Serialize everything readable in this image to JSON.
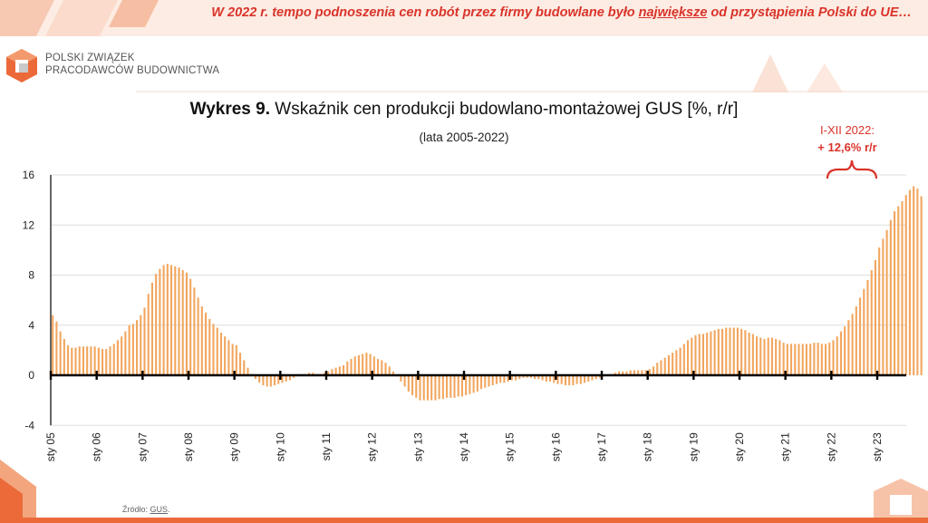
{
  "banner": {
    "text_before": "W 2022 r. tempo podnoszenia cen robót przez firmy budowlane było ",
    "text_underlined": "największe",
    "text_after": " od przystąpienia Polski do UE…"
  },
  "org": {
    "line1": "POLSKI ZWIĄZEK",
    "line2": "PRACODAWCÓW BUDOWNICTWA"
  },
  "colors": {
    "accent": "#ec6a3a",
    "bar": "#f2a65e",
    "red": "#d9342b"
  },
  "chart_data": {
    "type": "bar",
    "title_bold": "Wykres 9.",
    "title_rest": " Wskaźnik cen produkcji budowlano-montażowej GUS [%, r/r]",
    "subtitle": "(lata 2005-2022)",
    "ylim": [
      -4,
      16
    ],
    "yticks": [
      "-4",
      "0",
      "4",
      "8",
      "12",
      "16"
    ],
    "xticks": [
      "sty 05",
      "sty 06",
      "sty 07",
      "sty 08",
      "sty 09",
      "sty 10",
      "sty 11",
      "sty 12",
      "sty 13",
      "sty 14",
      "sty 15",
      "sty 16",
      "sty 17",
      "sty 18",
      "sty 19",
      "sty 20",
      "sty 21",
      "sty 22",
      "sty 23"
    ],
    "grid": true,
    "annotation": {
      "line1": "I-XII 2022:",
      "line2": "+ 12,6% r/r"
    },
    "values_2005_2022_monthly": [
      4.8,
      4.3,
      3.5,
      2.9,
      2.4,
      2.2,
      2.2,
      2.3,
      2.3,
      2.3,
      2.3,
      2.3,
      2.2,
      2.1,
      2.1,
      2.3,
      2.5,
      2.8,
      3.1,
      3.5,
      4.0,
      4.1,
      4.4,
      4.8,
      5.4,
      6.5,
      7.4,
      8.1,
      8.5,
      8.8,
      8.9,
      8.8,
      8.7,
      8.6,
      8.4,
      8.2,
      7.7,
      7.0,
      6.2,
      5.5,
      5.0,
      4.5,
      4.1,
      3.8,
      3.4,
      3.1,
      2.8,
      2.5,
      2.4,
      1.8,
      1.2,
      0.6,
      0.1,
      -0.3,
      -0.6,
      -0.8,
      -0.9,
      -0.9,
      -0.8,
      -0.7,
      -0.6,
      -0.5,
      -0.4,
      -0.2,
      0.0,
      0.1,
      0.1,
      0.2,
      0.2,
      0.1,
      0.1,
      0.2,
      0.3,
      0.5,
      0.6,
      0.7,
      0.8,
      1.1,
      1.3,
      1.5,
      1.6,
      1.7,
      1.8,
      1.7,
      1.5,
      1.3,
      1.2,
      1.0,
      0.7,
      0.3,
      -0.1,
      -0.5,
      -0.9,
      -1.3,
      -1.6,
      -1.8,
      -2.0,
      -2.0,
      -2.0,
      -2.0,
      -2.0,
      -1.9,
      -1.9,
      -1.8,
      -1.8,
      -1.8,
      -1.7,
      -1.7,
      -1.6,
      -1.5,
      -1.4,
      -1.3,
      -1.1,
      -1.0,
      -0.9,
      -0.8,
      -0.7,
      -0.6,
      -0.6,
      -0.5,
      -0.4,
      -0.4,
      -0.3,
      -0.2,
      -0.2,
      -0.2,
      -0.3,
      -0.3,
      -0.4,
      -0.5,
      -0.5,
      -0.6,
      -0.7,
      -0.7,
      -0.8,
      -0.8,
      -0.8,
      -0.7,
      -0.7,
      -0.6,
      -0.5,
      -0.4,
      -0.3,
      -0.2,
      -0.1,
      0.0,
      0.1,
      0.2,
      0.3,
      0.3,
      0.3,
      0.4,
      0.4,
      0.4,
      0.4,
      0.4,
      0.5,
      0.7,
      1.0,
      1.2,
      1.4,
      1.6,
      1.8,
      2.0,
      2.2,
      2.5,
      2.8,
      3.0,
      3.2,
      3.3,
      3.3,
      3.4,
      3.5,
      3.6,
      3.7,
      3.7,
      3.8,
      3.8,
      3.8,
      3.8,
      3.7,
      3.6,
      3.4,
      3.3,
      3.1,
      3.0,
      2.9,
      3.0,
      3.0,
      2.9,
      2.8,
      2.6,
      2.5,
      2.5,
      2.5,
      2.5,
      2.5,
      2.5,
      2.5,
      2.6,
      2.6,
      2.5,
      2.5,
      2.6,
      2.8,
      3.1,
      3.5,
      3.9,
      4.4,
      4.9,
      5.5,
      6.2,
      6.9,
      7.6,
      8.4,
      9.2,
      10.2,
      10.9,
      11.6,
      12.4,
      13.1,
      13.5,
      13.9,
      14.4,
      14.8,
      15.1,
      14.9,
      14.3
    ]
  },
  "source": {
    "label": "Źródło: ",
    "link": "GUS",
    "end": "."
  }
}
